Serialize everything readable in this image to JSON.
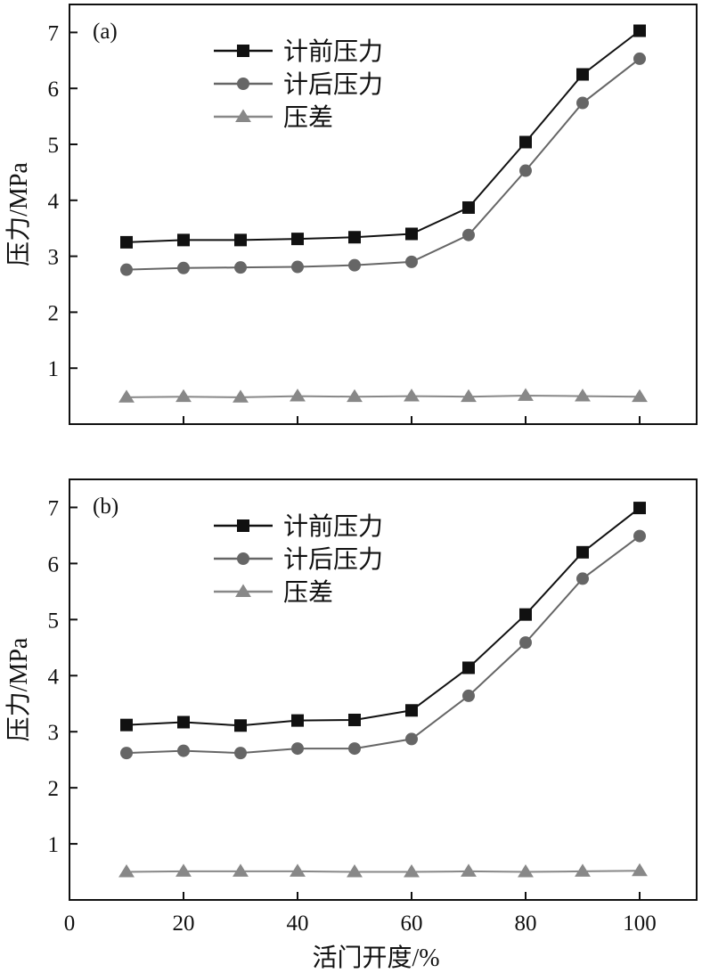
{
  "chart_data": [
    {
      "type": "line",
      "panel_label": "(a)",
      "x": [
        10,
        20,
        30,
        40,
        50,
        60,
        70,
        80,
        90,
        100
      ],
      "xlabel": "",
      "ylabel": "压力/MPa",
      "xlim": [
        0,
        110
      ],
      "ylim": [
        0,
        7.5
      ],
      "yticks": [
        1,
        2,
        3,
        4,
        5,
        6,
        7
      ],
      "xticks": [],
      "legend_position": "top-center",
      "grid": false,
      "series": [
        {
          "name": "计前压力",
          "marker": "square",
          "color": "#111111",
          "values": [
            3.25,
            3.29,
            3.29,
            3.31,
            3.34,
            3.4,
            3.87,
            5.04,
            6.25,
            7.03
          ]
        },
        {
          "name": "计后压力",
          "marker": "circle",
          "color": "#666666",
          "values": [
            2.76,
            2.79,
            2.8,
            2.81,
            2.84,
            2.9,
            3.38,
            4.53,
            5.74,
            6.53
          ]
        },
        {
          "name": "压差",
          "marker": "triangle",
          "color": "#888888",
          "values": [
            0.48,
            0.49,
            0.48,
            0.5,
            0.49,
            0.5,
            0.49,
            0.51,
            0.5,
            0.49
          ]
        }
      ]
    },
    {
      "type": "line",
      "panel_label": "(b)",
      "x": [
        10,
        20,
        30,
        40,
        50,
        60,
        70,
        80,
        90,
        100
      ],
      "xlabel": "活门开度/%",
      "ylabel": "压力/MPa",
      "xlim": [
        0,
        110
      ],
      "ylim": [
        0,
        7.5
      ],
      "yticks": [
        1,
        2,
        3,
        4,
        5,
        6,
        7
      ],
      "xticks": [
        0,
        20,
        40,
        60,
        80,
        100
      ],
      "legend_position": "top-center",
      "grid": false,
      "series": [
        {
          "name": "计前压力",
          "marker": "square",
          "color": "#111111",
          "values": [
            3.12,
            3.17,
            3.11,
            3.2,
            3.21,
            3.38,
            4.14,
            5.09,
            6.2,
            6.99
          ]
        },
        {
          "name": "计后压力",
          "marker": "circle",
          "color": "#666666",
          "values": [
            2.62,
            2.66,
            2.62,
            2.7,
            2.7,
            2.87,
            3.64,
            4.59,
            5.73,
            6.49
          ]
        },
        {
          "name": "压差",
          "marker": "triangle",
          "color": "#888888",
          "values": [
            0.5,
            0.51,
            0.51,
            0.51,
            0.5,
            0.5,
            0.51,
            0.5,
            0.51,
            0.52
          ]
        }
      ]
    }
  ]
}
